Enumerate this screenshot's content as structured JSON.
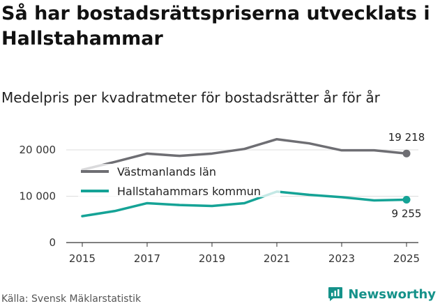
{
  "header": {
    "title": "Så har bostadsrättspriserna utvecklats i Hallstahammar",
    "subtitle": "Medelpris per kvadratmeter för bostadsrätter år för år"
  },
  "footer": {
    "source": "Källa: Svensk Mäklarstatistik",
    "brand": "Newsworthy"
  },
  "chart_data": {
    "type": "line",
    "title": "Så har bostadsrättspriserna utvecklats i Hallstahammar",
    "subtitle": "Medelpris per kvadratmeter för bostadsrätter år för år",
    "xlabel": "",
    "ylabel": "",
    "x": [
      2015,
      2016,
      2017,
      2018,
      2019,
      2020,
      2021,
      2022,
      2023,
      2024,
      2025
    ],
    "x_tick_labels": [
      "2015",
      "2017",
      "2019",
      "2021",
      "2023",
      "2025"
    ],
    "x_tick_values": [
      2015,
      2017,
      2019,
      2021,
      2023,
      2025
    ],
    "y_tick_labels": [
      "0",
      "10 000",
      "20 000"
    ],
    "y_tick_values": [
      0,
      10000,
      20000
    ],
    "xlim": [
      2015,
      2025
    ],
    "ylim": [
      0,
      20000
    ],
    "grid": true,
    "legend_position": "top-left",
    "series": [
      {
        "name": "Västmanlands län",
        "color": "#6e6e73",
        "values": [
          15700,
          17400,
          19200,
          18700,
          19200,
          20200,
          22300,
          21400,
          19900,
          19900,
          19218
        ],
        "end_label": "19 218"
      },
      {
        "name": "Hallstahammars kommun",
        "color": "#15a396",
        "values": [
          5700,
          6800,
          8500,
          8100,
          7900,
          8500,
          11000,
          10300,
          9800,
          9100,
          9255
        ],
        "end_label": "9 255"
      }
    ]
  }
}
